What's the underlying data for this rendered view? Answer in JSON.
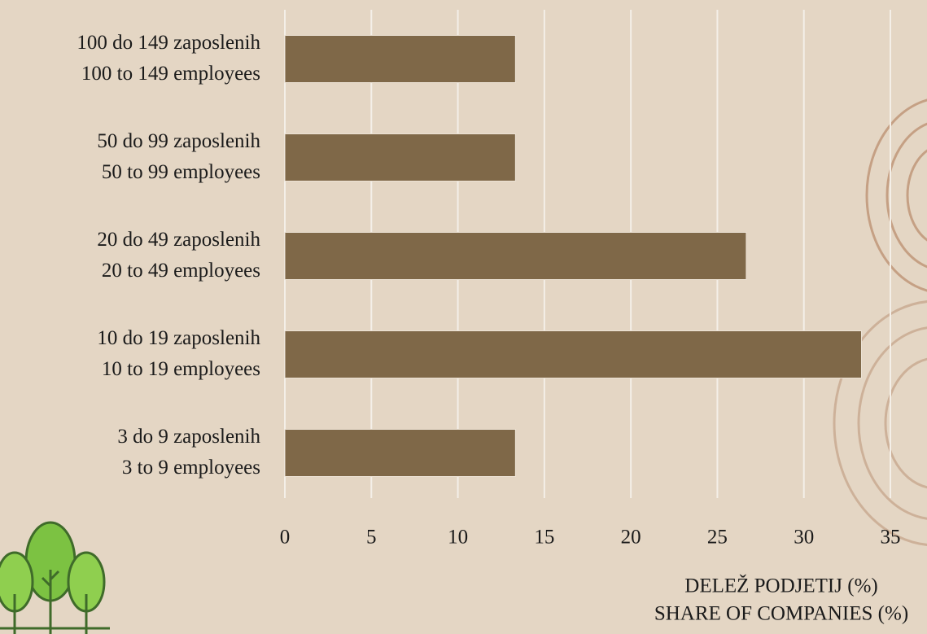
{
  "chart_data": {
    "type": "bar",
    "orientation": "horizontal",
    "categories": [
      [
        "100 do 149 zaposlenih",
        "100 to 149 employees"
      ],
      [
        "50 do 99 zaposlenih",
        "50 to 99 employees"
      ],
      [
        "20 do 49 zaposlenih",
        "20 to 49 employees"
      ],
      [
        "10 do 19 zaposlenih",
        "10 to 19 employees"
      ],
      [
        "3 do 9 zaposlenih",
        "3 to 9 employees"
      ]
    ],
    "values": [
      13.33,
      13.33,
      26.67,
      33.33,
      13.33
    ],
    "color": "#7f6848",
    "xlim": [
      0,
      35
    ],
    "xticks": [
      0,
      5,
      10,
      15,
      20,
      25,
      30,
      35
    ],
    "grid": true,
    "xlabel": [
      "DELEŽ PODJETIJ (%)",
      "SHARE OF COMPANIES (%)"
    ]
  }
}
